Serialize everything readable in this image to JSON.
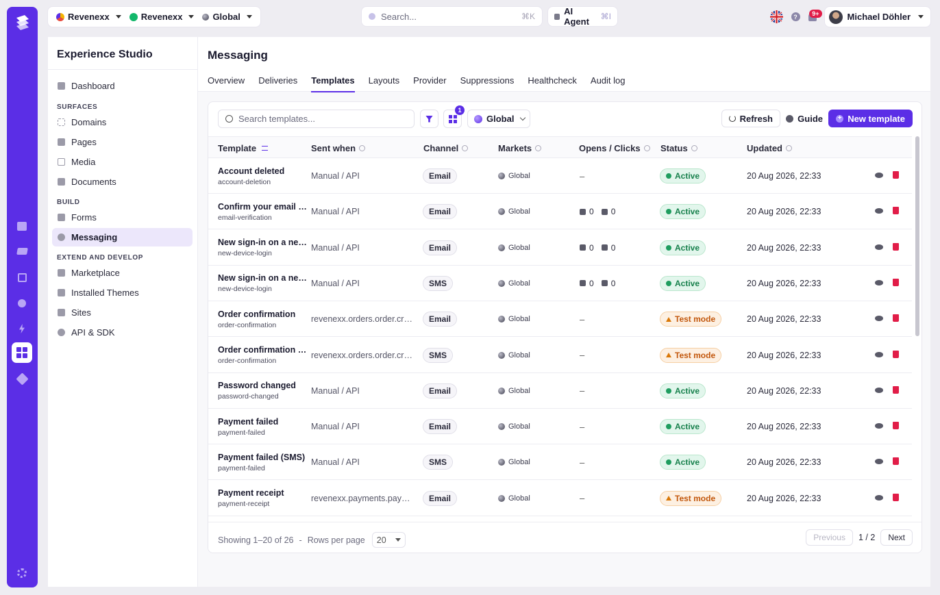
{
  "topbar": {
    "org": "Revenexx",
    "workspace": "Revenexx",
    "market": "Global",
    "search_placeholder": "Search...",
    "search_shortcut": "⌘K",
    "agent_label": "AI Agent",
    "agent_shortcut": "⌘I",
    "notifications_badge": "9+",
    "user_name": "Michael Döhler"
  },
  "sidebar": {
    "title": "Experience Studio",
    "dashboard": "Dashboard",
    "sections": {
      "surfaces": "SURFACES",
      "build": "BUILD",
      "extend": "EXTEND AND DEVELOP"
    },
    "items": {
      "domains": "Domains",
      "pages": "Pages",
      "media": "Media",
      "documents": "Documents",
      "forms": "Forms",
      "messaging": "Messaging",
      "marketplace": "Marketplace",
      "themes": "Installed Themes",
      "sites": "Sites",
      "api": "API & SDK"
    }
  },
  "main": {
    "title": "Messaging",
    "tabs": [
      "Overview",
      "Deliveries",
      "Templates",
      "Layouts",
      "Provider",
      "Suppressions",
      "Healthcheck",
      "Audit log"
    ],
    "active_tab": "Templates"
  },
  "toolbar": {
    "search_placeholder": "Search templates...",
    "filter_badge": "1",
    "market": "Global",
    "refresh": "Refresh",
    "guide": "Guide",
    "new_template": "New template"
  },
  "table": {
    "headers": {
      "template": "Template",
      "sent_when": "Sent when",
      "channel": "Channel",
      "markets": "Markets",
      "opens": "Opens / Clicks",
      "status": "Status",
      "updated": "Updated"
    },
    "rows": [
      {
        "name": "Account deleted",
        "key": "account-deletion",
        "sent": "Manual / API",
        "channel": "Email",
        "market": "Global",
        "opens": "–",
        "clicks": "",
        "status": "Active",
        "updated": "20 Aug 2026, 22:33"
      },
      {
        "name": "Confirm your email ad...",
        "key": "email-verification",
        "sent": "Manual / API",
        "channel": "Email",
        "market": "Global",
        "opens": "0",
        "clicks": "0",
        "status": "Active",
        "updated": "20 Aug 2026, 22:33"
      },
      {
        "name": "New sign-in on a new ...",
        "key": "new-device-login",
        "sent": "Manual / API",
        "channel": "Email",
        "market": "Global",
        "opens": "0",
        "clicks": "0",
        "status": "Active",
        "updated": "20 Aug 2026, 22:33"
      },
      {
        "name": "New sign-in on a new ...",
        "key": "new-device-login",
        "sent": "Manual / API",
        "channel": "SMS",
        "market": "Global",
        "opens": "0",
        "clicks": "0",
        "status": "Active",
        "updated": "20 Aug 2026, 22:33"
      },
      {
        "name": "Order confirmation",
        "key": "order-confirmation",
        "sent": "revenexx.orders.order.crea...",
        "channel": "Email",
        "market": "Global",
        "opens": "–",
        "clicks": "",
        "status": "Test mode",
        "updated": "20 Aug 2026, 22:33"
      },
      {
        "name": "Order confirmation (S...",
        "key": "order-confirmation",
        "sent": "revenexx.orders.order.crea...",
        "channel": "SMS",
        "market": "Global",
        "opens": "–",
        "clicks": "",
        "status": "Test mode",
        "updated": "20 Aug 2026, 22:33"
      },
      {
        "name": "Password changed",
        "key": "password-changed",
        "sent": "Manual / API",
        "channel": "Email",
        "market": "Global",
        "opens": "–",
        "clicks": "",
        "status": "Active",
        "updated": "20 Aug 2026, 22:33"
      },
      {
        "name": "Payment failed",
        "key": "payment-failed",
        "sent": "Manual / API",
        "channel": "Email",
        "market": "Global",
        "opens": "–",
        "clicks": "",
        "status": "Active",
        "updated": "20 Aug 2026, 22:33"
      },
      {
        "name": "Payment failed (SMS)",
        "key": "payment-failed",
        "sent": "Manual / API",
        "channel": "SMS",
        "market": "Global",
        "opens": "–",
        "clicks": "",
        "status": "Active",
        "updated": "20 Aug 2026, 22:33"
      },
      {
        "name": "Payment receipt",
        "key": "payment-receipt",
        "sent": "revenexx.payments.payme...",
        "channel": "Email",
        "market": "Global",
        "opens": "–",
        "clicks": "",
        "status": "Test mode",
        "updated": "20 Aug 2026, 22:33"
      }
    ]
  },
  "footer": {
    "showing": "Showing 1–20 of 26",
    "sep": "-",
    "rows_per_page": "Rows per page",
    "rows_value": "20",
    "previous": "Previous",
    "page": "1 / 2",
    "next": "Next"
  }
}
